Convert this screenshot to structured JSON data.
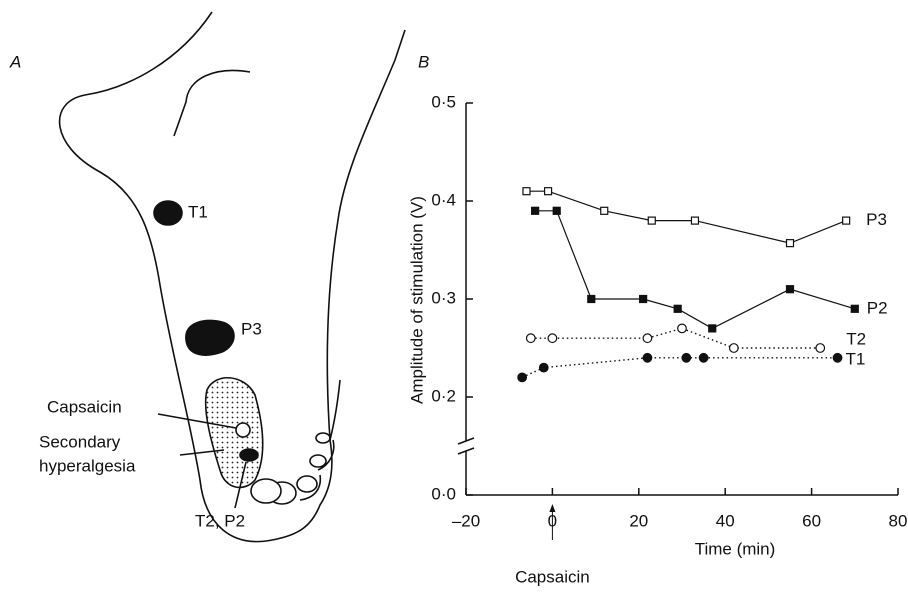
{
  "panel_a": {
    "label": "A",
    "labels": {
      "t1": "T1",
      "p3": "P3",
      "capsaicin": "Capsaicin",
      "secondary": [
        "Secondary",
        "hyperalgesia"
      ],
      "t2p2": "T2, P2"
    }
  },
  "chart_data": {
    "type": "line",
    "panel_label": "B",
    "x_label": "Time (min)",
    "y_label": "Amplitude of stimulation (V)",
    "annotation": "Capsaicin",
    "annotation_x": 0,
    "xlim": [
      -20,
      80
    ],
    "xticks": [
      {
        "value": -20,
        "label": "–20"
      },
      0,
      20,
      40,
      60,
      80
    ],
    "ylim": [
      0,
      0.5
    ],
    "yticks": [
      {
        "value": 0,
        "label": "0·0"
      },
      {
        "value": 0.2,
        "label": "0·2"
      },
      {
        "value": 0.3,
        "label": "0·3"
      },
      {
        "value": 0.4,
        "label": "0·4"
      },
      {
        "value": 0.5,
        "label": "0·5"
      }
    ],
    "y_break": [
      0,
      0.2
    ],
    "series": [
      {
        "name": "P3",
        "color": "#111",
        "marker": "square",
        "filled": false,
        "line_style": "solid",
        "x": [
          -6,
          -1,
          12,
          23,
          33,
          55,
          68
        ],
        "values": [
          0.41,
          0.41,
          0.39,
          0.38,
          0.38,
          0.357,
          0.38
        ]
      },
      {
        "name": "P2",
        "color": "#111",
        "marker": "square",
        "filled": true,
        "line_style": "solid",
        "x": [
          -4,
          1,
          9,
          21,
          29,
          37,
          55,
          70
        ],
        "values": [
          0.39,
          0.39,
          0.3,
          0.3,
          0.29,
          0.27,
          0.31,
          0.29
        ]
      },
      {
        "name": "T2",
        "color": "#111",
        "marker": "circle",
        "filled": false,
        "line_style": "dotted",
        "x": [
          -5,
          0,
          22,
          30,
          42,
          62
        ],
        "values": [
          0.26,
          0.26,
          0.26,
          0.27,
          0.25,
          0.25
        ]
      },
      {
        "name": "T1",
        "color": "#111",
        "marker": "circle",
        "filled": true,
        "line_style": "dotted",
        "x": [
          -7,
          -2,
          22,
          31,
          35,
          66
        ],
        "values": [
          0.22,
          0.23,
          0.24,
          0.24,
          0.24,
          0.24
        ]
      }
    ]
  }
}
